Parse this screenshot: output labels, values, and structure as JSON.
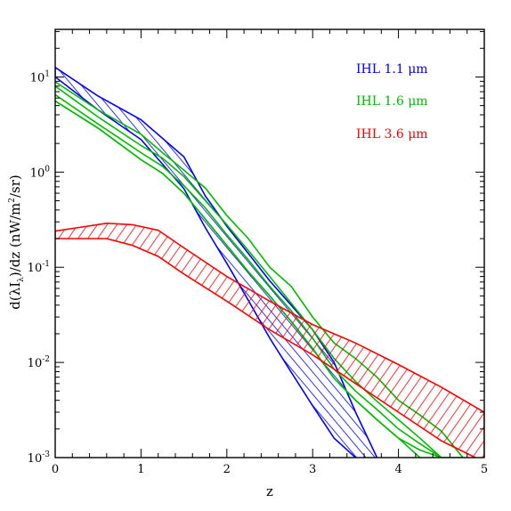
{
  "chart_data": {
    "type": "area",
    "xlabel": "z",
    "ylabel": "d(λI",
    "ylabel_sub": "λ",
    "ylabel_tail": ")/dz (nW/m",
    "ylabel_sup": "2",
    "ylabel_end": "/sr)",
    "xlim": [
      0,
      5
    ],
    "ylim_log10": [
      -3,
      1.5
    ],
    "log_y": true,
    "x_ticks": [
      "0",
      "1",
      "2",
      "3",
      "4",
      "5"
    ],
    "y_ticks": [
      {
        "base": "10",
        "exp": "1",
        "value": 10
      },
      {
        "base": "10",
        "exp": "0",
        "value": 1
      },
      {
        "base": "10",
        "exp": "-1",
        "value": 0.1
      },
      {
        "base": "10",
        "exp": "-2",
        "value": 0.01
      },
      {
        "base": "10",
        "exp": "-3",
        "value": 0.001
      }
    ],
    "series": [
      {
        "name": "IHL 1.1 μm",
        "color": "#0000ff",
        "style": "hatched-band",
        "x": [
          0,
          0.5,
          1.0,
          1.5,
          1.75,
          2.0,
          2.25,
          2.5,
          2.75,
          3.0,
          3.25,
          3.5,
          3.75
        ],
        "upper": [
          12.6,
          6.3,
          3.55,
          1.45,
          0.56,
          0.27,
          0.14,
          0.072,
          0.04,
          0.022,
          0.01,
          0.003,
          0.001
        ],
        "lower": [
          10.0,
          4.5,
          2.2,
          0.67,
          0.26,
          0.11,
          0.045,
          0.018,
          0.0079,
          0.0035,
          0.0016,
          0.001,
          0.0009
        ]
      },
      {
        "name": "IHL 1.6 μm",
        "color": "#00bb00",
        "style": "line-band",
        "x": [
          0,
          0.5,
          1.0,
          1.25,
          1.5,
          1.75,
          2.0,
          2.25,
          2.5,
          2.75,
          3.0,
          3.25,
          3.5,
          3.75,
          4.0,
          4.25,
          4.5,
          4.75
        ],
        "upper": [
          8.9,
          4.5,
          2.5,
          1.6,
          1.05,
          0.68,
          0.35,
          0.2,
          0.1,
          0.063,
          0.03,
          0.016,
          0.011,
          0.007,
          0.004,
          0.0028,
          0.0019,
          0.001
        ],
        "lines": [
          [
            8.0,
            3.8,
            1.9,
            1.4,
            0.9,
            0.5,
            0.28,
            0.15,
            0.08,
            0.042,
            0.022,
            0.011,
            0.0063,
            0.0039,
            0.0025,
            0.0016,
            0.001
          ],
          [
            6.5,
            3.2,
            1.6,
            1.15,
            0.72,
            0.42,
            0.22,
            0.12,
            0.063,
            0.035,
            0.018,
            0.0085,
            0.005,
            0.0032,
            0.002,
            0.0014,
            0.001
          ],
          [
            5.6,
            2.9,
            1.35,
            0.97,
            0.6,
            0.32,
            0.17,
            0.09,
            0.05,
            0.027,
            0.014,
            0.0068,
            0.004,
            0.0025,
            0.0016,
            0.001
          ]
        ],
        "lower": [
          5.6,
          2.9,
          1.35,
          0.97,
          0.6,
          0.32,
          0.17,
          0.09,
          0.05,
          0.027,
          0.014,
          0.0068,
          0.004,
          0.0025,
          0.0016,
          0.0012,
          0.001,
          0.001
        ]
      },
      {
        "name": "IHL 3.6 μm",
        "color": "#ff0000",
        "style": "hatched-band",
        "x": [
          0,
          0.6,
          0.9,
          1.2,
          1.5,
          2.0,
          2.5,
          3.0,
          3.5,
          4.0,
          4.5,
          5.0
        ],
        "upper": [
          0.24,
          0.29,
          0.28,
          0.245,
          0.16,
          0.08,
          0.044,
          0.025,
          0.016,
          0.0095,
          0.0055,
          0.003
        ],
        "lower": [
          0.2,
          0.2,
          0.17,
          0.13,
          0.085,
          0.044,
          0.022,
          0.012,
          0.006,
          0.003,
          0.0015,
          0.0009
        ]
      }
    ],
    "legend": {
      "position": "top-right"
    }
  }
}
